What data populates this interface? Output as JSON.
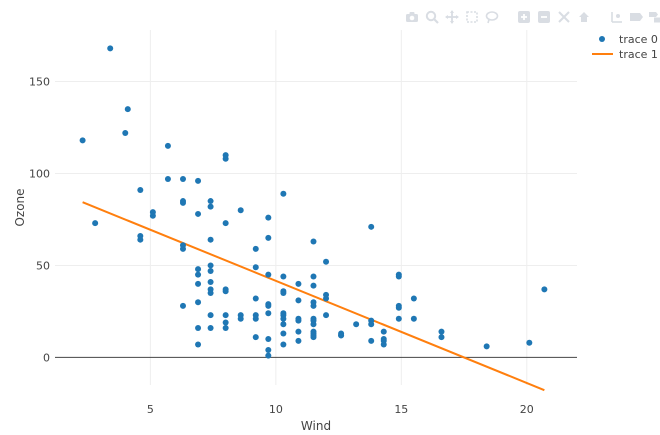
{
  "chart_data": {
    "type": "scatter",
    "xlabel": "Wind",
    "ylabel": "Ozone",
    "xlim": [
      1.2,
      22.0
    ],
    "ylim": [
      -15,
      178
    ],
    "xticks": [
      5,
      10,
      15,
      20
    ],
    "yticks": [
      0,
      50,
      100,
      150
    ],
    "grid": true,
    "legend_position": "top-right",
    "colors": {
      "points": "#1f77b4",
      "line": "#ff7f0e"
    },
    "series": [
      {
        "name": "trace 0",
        "mode": "markers",
        "points": [
          [
            3.4,
            168
          ],
          [
            2.3,
            118
          ],
          [
            4.1,
            135
          ],
          [
            4.0,
            122
          ],
          [
            5.7,
            115
          ],
          [
            5.7,
            97
          ],
          [
            6.3,
            97
          ],
          [
            6.9,
            96
          ],
          [
            8.0,
            110
          ],
          [
            8.0,
            108
          ],
          [
            4.6,
            91
          ],
          [
            10.3,
            89
          ],
          [
            6.3,
            85
          ],
          [
            6.3,
            84
          ],
          [
            7.4,
            85
          ],
          [
            7.4,
            82
          ],
          [
            8.6,
            80
          ],
          [
            5.1,
            79
          ],
          [
            5.1,
            77
          ],
          [
            6.9,
            78
          ],
          [
            9.7,
            76
          ],
          [
            8.0,
            73
          ],
          [
            2.8,
            73
          ],
          [
            13.8,
            71
          ],
          [
            4.6,
            66
          ],
          [
            4.6,
            64
          ],
          [
            7.4,
            64
          ],
          [
            9.7,
            65
          ],
          [
            11.5,
            63
          ],
          [
            6.3,
            61
          ],
          [
            6.3,
            59
          ],
          [
            9.2,
            59
          ],
          [
            12.0,
            52
          ],
          [
            7.4,
            50
          ],
          [
            6.9,
            48
          ],
          [
            7.4,
            47
          ],
          [
            9.2,
            49
          ],
          [
            6.9,
            45
          ],
          [
            9.7,
            45
          ],
          [
            10.3,
            44
          ],
          [
            11.5,
            44
          ],
          [
            14.9,
            45
          ],
          [
            14.9,
            44
          ],
          [
            6.9,
            40
          ],
          [
            7.4,
            41
          ],
          [
            10.9,
            40
          ],
          [
            11.5,
            39
          ],
          [
            7.4,
            37
          ],
          [
            8.0,
            37
          ],
          [
            10.3,
            36
          ],
          [
            10.3,
            35
          ],
          [
            7.4,
            35
          ],
          [
            8.0,
            36
          ],
          [
            20.7,
            37
          ],
          [
            15.5,
            32
          ],
          [
            12.0,
            34
          ],
          [
            12.0,
            32
          ],
          [
            9.2,
            32
          ],
          [
            10.9,
            31
          ],
          [
            11.5,
            30
          ],
          [
            6.3,
            28
          ],
          [
            9.7,
            29
          ],
          [
            9.7,
            28
          ],
          [
            11.5,
            28
          ],
          [
            14.9,
            28
          ],
          [
            14.9,
            27
          ],
          [
            6.9,
            30
          ],
          [
            7.4,
            23
          ],
          [
            8.0,
            23
          ],
          [
            8.6,
            23
          ],
          [
            9.2,
            23
          ],
          [
            10.3,
            24
          ],
          [
            10.3,
            23
          ],
          [
            9.7,
            24
          ],
          [
            12.0,
            23
          ],
          [
            8.6,
            21
          ],
          [
            9.2,
            21
          ],
          [
            10.3,
            21
          ],
          [
            10.9,
            21
          ],
          [
            10.9,
            20
          ],
          [
            11.5,
            21
          ],
          [
            11.5,
            20
          ],
          [
            13.8,
            20
          ],
          [
            14.9,
            21
          ],
          [
            15.5,
            21
          ],
          [
            8.0,
            19
          ],
          [
            10.3,
            18
          ],
          [
            11.5,
            18
          ],
          [
            13.2,
            18
          ],
          [
            13.8,
            18
          ],
          [
            6.9,
            16
          ],
          [
            7.4,
            16
          ],
          [
            8.0,
            16
          ],
          [
            10.9,
            14
          ],
          [
            11.5,
            14
          ],
          [
            11.5,
            13
          ],
          [
            11.5,
            12
          ],
          [
            12.6,
            13
          ],
          [
            12.6,
            12
          ],
          [
            14.3,
            14
          ],
          [
            16.6,
            14
          ],
          [
            16.6,
            11
          ],
          [
            10.3,
            13
          ],
          [
            9.2,
            11
          ],
          [
            9.7,
            10
          ],
          [
            10.9,
            9
          ],
          [
            11.5,
            11
          ],
          [
            13.8,
            9
          ],
          [
            14.3,
            9
          ],
          [
            14.3,
            7
          ],
          [
            10.3,
            7
          ],
          [
            6.9,
            7
          ],
          [
            9.7,
            4
          ],
          [
            9.7,
            1
          ],
          [
            18.4,
            6
          ],
          [
            20.1,
            8
          ],
          [
            12.6,
            12
          ],
          [
            14.3,
            10
          ]
        ]
      },
      {
        "name": "trace 1",
        "mode": "lines",
        "points": [
          [
            2.3,
            84.4
          ],
          [
            20.7,
            -17.8
          ]
        ]
      }
    ]
  },
  "toolbar": {
    "icons": [
      "camera-icon",
      "zoom-icon",
      "pan-icon",
      "box-select-icon",
      "lasso-select-icon",
      "zoom-in-icon",
      "zoom-out-icon",
      "autoscale-icon",
      "reset-axes-icon",
      "spike-lines-icon",
      "hover-closest-icon",
      "hover-compare-icon"
    ]
  }
}
